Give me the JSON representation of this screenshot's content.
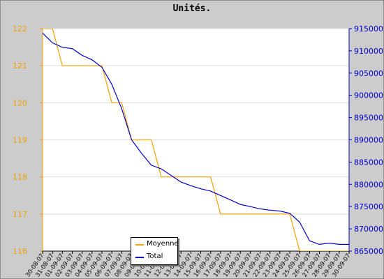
{
  "chart_data": {
    "type": "line",
    "title": "Unités.",
    "xlabel": "",
    "ylabel": "",
    "categories": [
      "30-08-07",
      "31-08-07",
      "01-09-07",
      "02-09-07",
      "03-09-07",
      "04-09-07",
      "05-09-07",
      "06-09-07",
      "07-09-07",
      "08-09-07",
      "09-09-07",
      "10-09-07",
      "11-09-07",
      "12-09-07",
      "13-09-07",
      "14-09-07",
      "15-09-07",
      "16-09-07",
      "17-09-07",
      "18-09-07",
      "19-09-07",
      "20-09-07",
      "21-09-07",
      "22-09-07",
      "23-09-07",
      "24-09-07",
      "25-09-07",
      "26-09-07",
      "27-09-07",
      "28-09-07",
      "29-09-07",
      "30-09-07"
    ],
    "y_left": {
      "range": [
        116,
        122
      ],
      "ticks": [
        116,
        117,
        118,
        119,
        120,
        121,
        122
      ],
      "color": "#f0a000"
    },
    "y_right": {
      "range": [
        865000,
        915000
      ],
      "ticks": [
        865000,
        870000,
        875000,
        880000,
        885000,
        890000,
        895000,
        900000,
        905000,
        910000,
        915000
      ],
      "color": "#0000cc"
    },
    "grid": true,
    "legend_position": "bottom-center",
    "series": [
      {
        "name": "Moyenne",
        "axis": "left",
        "color": "#f0a000",
        "values": [
          122,
          122,
          121,
          121,
          121,
          121,
          121,
          120,
          120,
          119,
          119,
          119,
          118,
          118,
          118,
          118,
          118,
          118,
          117,
          117,
          117,
          117,
          117,
          117,
          117,
          117,
          116,
          116,
          116,
          116,
          116,
          116
        ]
      },
      {
        "name": "Total",
        "axis": "right",
        "color": "#0000cc",
        "values": [
          914000,
          911800,
          910800,
          910500,
          909000,
          908000,
          906300,
          902500,
          897000,
          890000,
          887000,
          884300,
          883500,
          882000,
          880500,
          879700,
          879000,
          878500,
          877500,
          876500,
          875500,
          875000,
          874500,
          874200,
          874000,
          873500,
          871500,
          867300,
          866500,
          866800,
          866500,
          866500
        ]
      }
    ]
  }
}
